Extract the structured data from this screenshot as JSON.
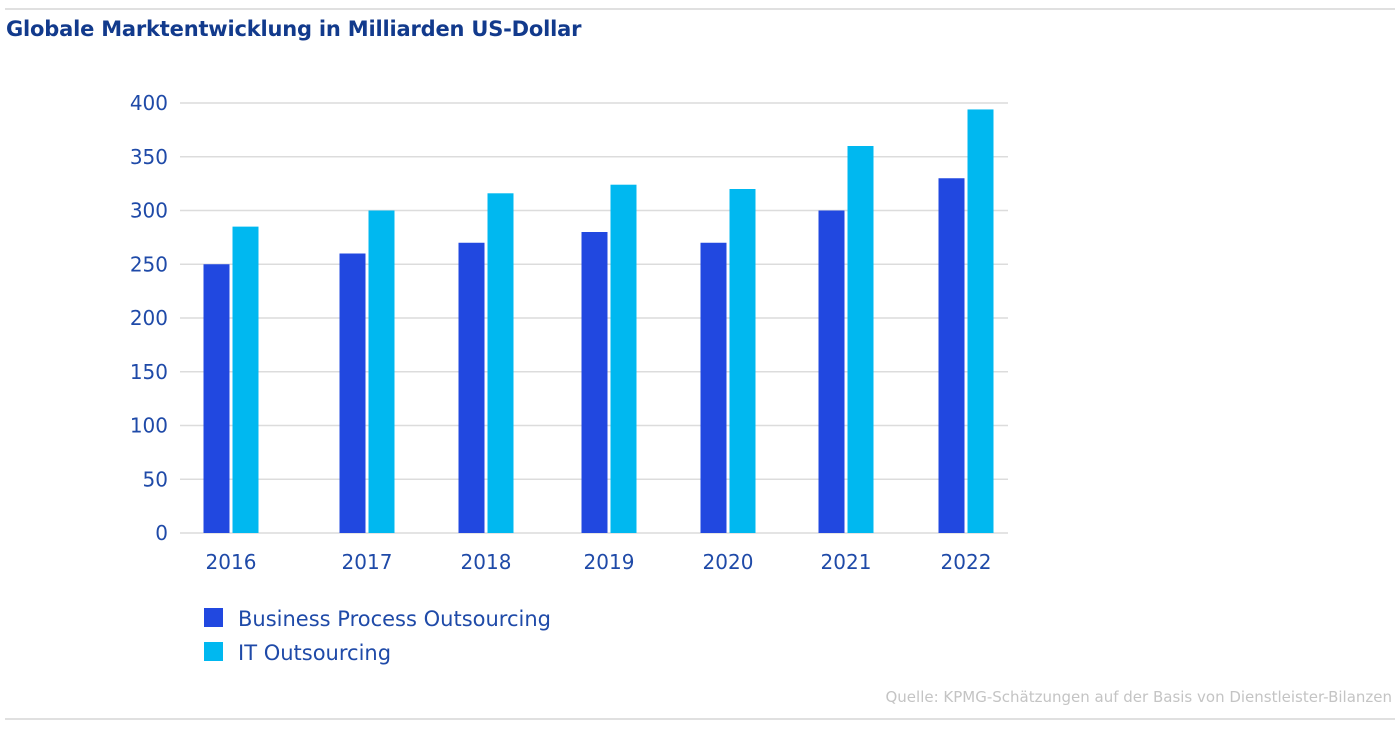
{
  "header": {
    "title": "Globale Marktentwicklung in Milliarden US-Dollar"
  },
  "footer": {
    "source": "Quelle: KPMG-Schätzungen auf der Basis von Dienstleister-Bilanzen"
  },
  "colors": {
    "title": "#123a8c",
    "axis_text": "#1f4aa8",
    "gridline": "#dcdcdc",
    "source_text": "#c4c4c4",
    "series_bpo": "#2148e0",
    "series_ito": "#00b8f0"
  },
  "chart_data": {
    "type": "bar",
    "title": "Globale Marktentwicklung in Milliarden US-Dollar",
    "xlabel": "",
    "ylabel": "",
    "categories": [
      "2016",
      "2017",
      "2018",
      "2019",
      "2020",
      "2021",
      "2022"
    ],
    "series": [
      {
        "name": "Business Process Outsourcing",
        "color": "#2148e0",
        "values": [
          250,
          260,
          270,
          280,
          270,
          300,
          330
        ]
      },
      {
        "name": "IT Outsourcing",
        "color": "#00b8f0",
        "values": [
          285,
          300,
          316,
          324,
          320,
          360,
          394
        ]
      }
    ],
    "ylim": [
      0,
      400
    ],
    "yticks": [
      0,
      50,
      100,
      150,
      200,
      250,
      300,
      350,
      400
    ],
    "grid": true,
    "legend_position": "bottom-left"
  }
}
